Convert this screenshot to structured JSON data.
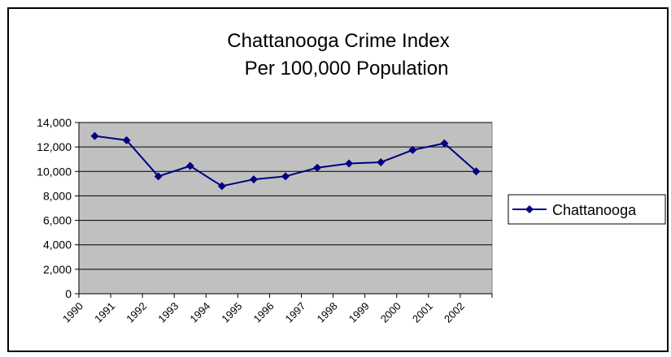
{
  "chart_data": {
    "type": "line",
    "title_lines": [
      "Chattanooga Crime Index",
      "Per 100,000 Population"
    ],
    "xlabel": "",
    "ylabel": "",
    "categories": [
      "1990",
      "1991",
      "1992",
      "1993",
      "1994",
      "1995",
      "1996",
      "1997",
      "1998",
      "1999",
      "2000",
      "2001",
      "2002"
    ],
    "ylim": [
      0,
      14000
    ],
    "y_ticks": [
      0,
      2000,
      4000,
      6000,
      8000,
      10000,
      12000,
      14000
    ],
    "y_tick_labels": [
      "0",
      "2,000",
      "4,000",
      "6,000",
      "8,000",
      "10,000",
      "12,000",
      "14,000"
    ],
    "grid": true,
    "legend_position": "right",
    "plot_background": "#c0c0c0",
    "series": [
      {
        "name": "Chattanooga",
        "color": "#000080",
        "marker": "diamond",
        "values": [
          12900,
          12550,
          9600,
          10450,
          8800,
          9350,
          9600,
          10300,
          10650,
          10750,
          11750,
          12300,
          10000
        ]
      }
    ]
  }
}
